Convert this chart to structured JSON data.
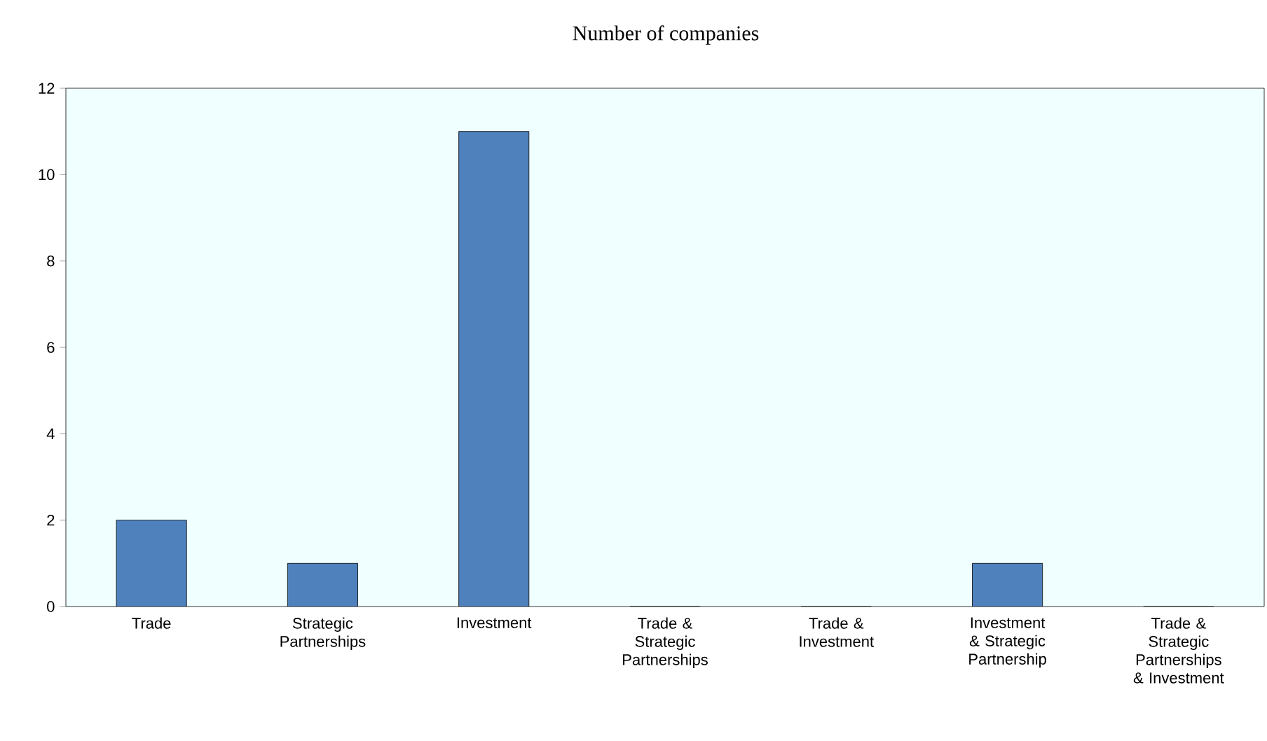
{
  "chart_data": {
    "type": "bar",
    "title": "Number of companies",
    "categories": [
      "Trade",
      "Strategic Partnerships",
      "Investment",
      "Trade & Strategic Partnerships",
      "Trade & Investment",
      "Investment & Strategic Partnership",
      "Trade & Strategic Partnerships & Investment"
    ],
    "values": [
      2,
      1,
      11,
      0,
      0,
      1,
      0
    ],
    "color": "#4f81bd",
    "ylim": [
      0,
      12
    ],
    "yticks": [
      0,
      2,
      4,
      6,
      8,
      10,
      12
    ]
  }
}
